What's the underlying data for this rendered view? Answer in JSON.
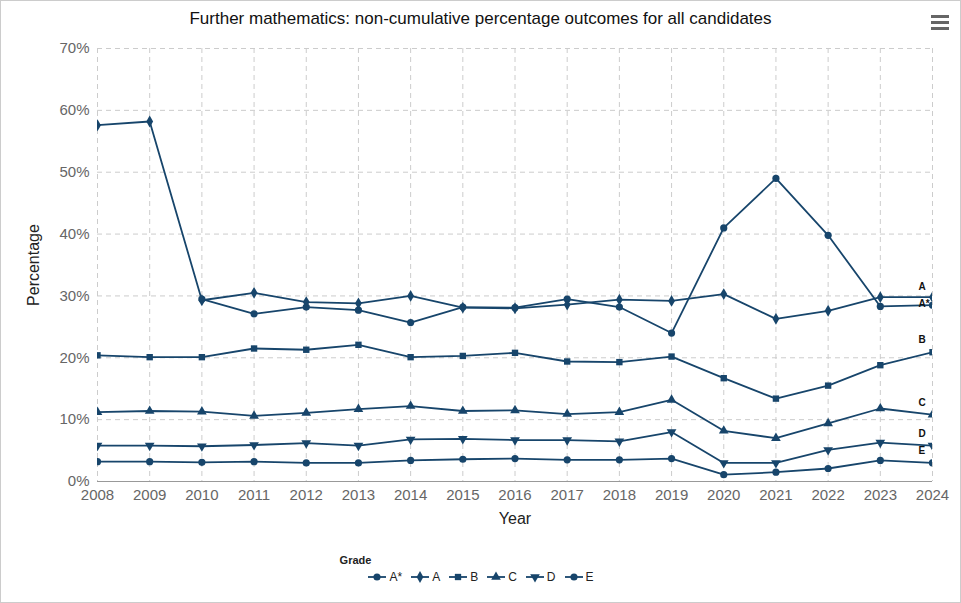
{
  "chart_data": {
    "type": "line",
    "title": "Further mathematics: non-cumulative percentage outcomes for all candidates",
    "x_label": "Year",
    "y_label": "Percentage",
    "x": [
      2008,
      2009,
      2010,
      2011,
      2012,
      2013,
      2014,
      2015,
      2016,
      2017,
      2018,
      2019,
      2020,
      2021,
      2022,
      2023,
      2024
    ],
    "xlim": [
      2008,
      2024
    ],
    "xticks": [
      2008,
      2009,
      2010,
      2011,
      2012,
      2013,
      2014,
      2015,
      2016,
      2017,
      2018,
      2019,
      2020,
      2021,
      2022,
      2023,
      2024
    ],
    "ylim": [
      0,
      70
    ],
    "yticks": [
      {
        "value": 0,
        "label": "0%"
      },
      {
        "value": 10,
        "label": "10%"
      },
      {
        "value": 20,
        "label": "20%"
      },
      {
        "value": 30,
        "label": "30%"
      },
      {
        "value": 40,
        "label": "40%"
      },
      {
        "value": 50,
        "label": "50%"
      },
      {
        "value": 60,
        "label": "60%"
      },
      {
        "value": 70,
        "label": "70%"
      }
    ],
    "grid": true,
    "legend": "bottom",
    "legend_title": "Grade",
    "series": [
      {
        "name": "A*",
        "color": "#17456b",
        "marker": "circle",
        "values": [
          null,
          null,
          29.5,
          27.1,
          28.2,
          27.7,
          25.7,
          28.2,
          28.1,
          29.5,
          28.2,
          24.0,
          41.0,
          49.0,
          39.8,
          28.3,
          28.5
        ]
      },
      {
        "name": "A",
        "color": "#17456b",
        "marker": "diamond",
        "values": [
          57.6,
          58.2,
          29.3,
          30.5,
          29.0,
          28.8,
          30.0,
          28.1,
          28.0,
          28.6,
          29.4,
          29.2,
          30.3,
          26.3,
          27.6,
          29.8,
          29.8
        ]
      },
      {
        "name": "B",
        "color": "#17456b",
        "marker": "square",
        "values": [
          20.4,
          20.1,
          20.1,
          21.5,
          21.3,
          22.1,
          20.1,
          20.3,
          20.8,
          19.4,
          19.3,
          20.2,
          16.7,
          13.4,
          15.5,
          18.8,
          20.9
        ]
      },
      {
        "name": "C",
        "color": "#17456b",
        "marker": "triangle",
        "values": [
          11.2,
          11.4,
          11.3,
          10.6,
          11.1,
          11.7,
          12.2,
          11.4,
          11.5,
          10.9,
          11.2,
          13.2,
          8.2,
          7.0,
          9.4,
          11.8,
          10.8
        ]
      },
      {
        "name": "D",
        "color": "#17456b",
        "marker": "triangle-down",
        "values": [
          5.8,
          5.8,
          5.7,
          5.9,
          6.2,
          5.8,
          6.8,
          6.9,
          6.7,
          6.7,
          6.5,
          8.0,
          3.0,
          3.0,
          5.1,
          6.3,
          5.8
        ]
      },
      {
        "name": "E",
        "color": "#17456b",
        "marker": "circle",
        "values": [
          3.2,
          3.2,
          3.1,
          3.2,
          3.0,
          3.0,
          3.4,
          3.6,
          3.7,
          3.5,
          3.5,
          3.7,
          1.1,
          1.5,
          2.1,
          3.4,
          3.0
        ]
      }
    ]
  }
}
